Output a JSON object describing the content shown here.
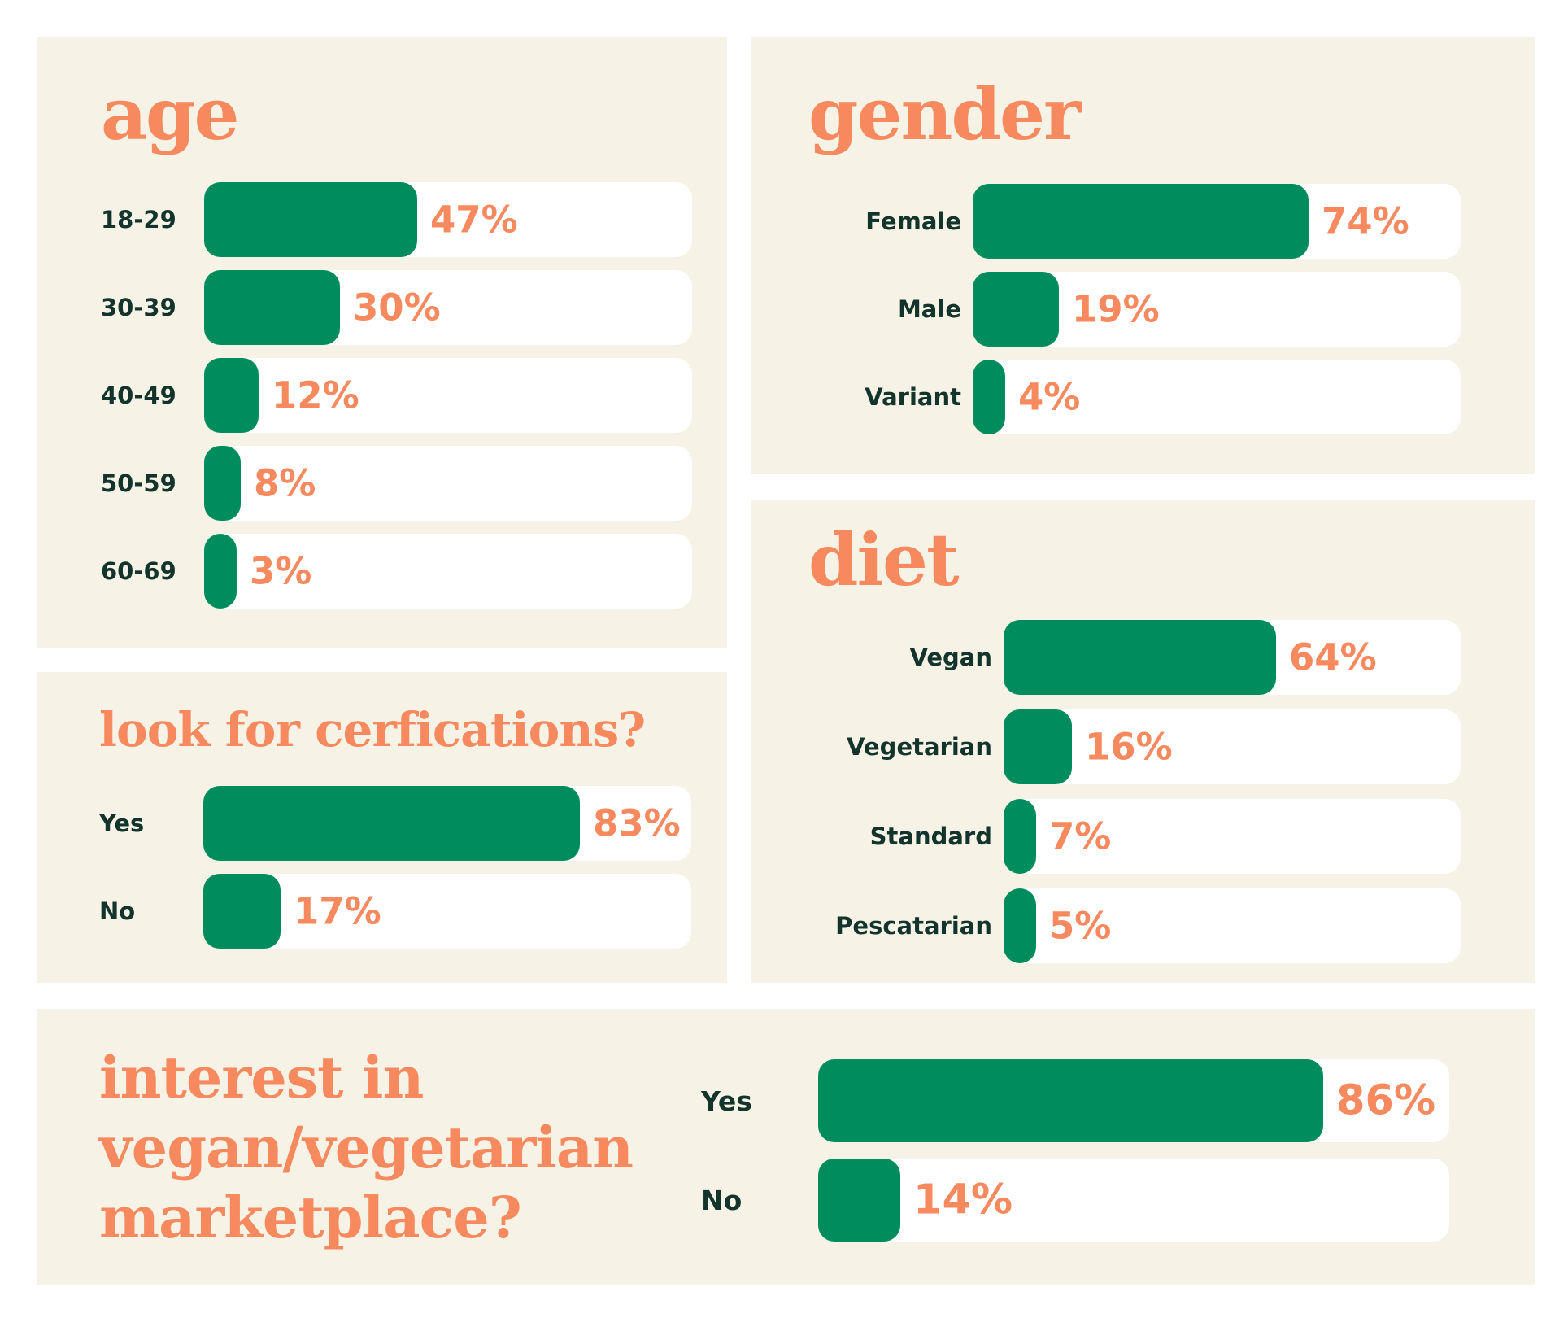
{
  "colors": {
    "panel": "#f6f3e6",
    "bar": "#008c5c",
    "track": "#ffffff",
    "accent": "#f68a5e",
    "label": "#12342c"
  },
  "chart_data": [
    {
      "type": "bar",
      "orientation": "horizontal",
      "title": "age",
      "categories": [
        "18-29",
        "30-39",
        "40-49",
        "50-59",
        "60-69"
      ],
      "values": [
        47,
        30,
        12,
        8,
        3
      ],
      "value_labels": [
        "47%",
        "30%",
        "12%",
        "8%",
        "3%"
      ]
    },
    {
      "type": "bar",
      "orientation": "horizontal",
      "title": "gender",
      "categories": [
        "Female",
        "Male",
        "Variant"
      ],
      "values": [
        74,
        19,
        4
      ],
      "value_labels": [
        "74%",
        "19%",
        "4%"
      ]
    },
    {
      "type": "bar",
      "orientation": "horizontal",
      "title": "look for cerfications?",
      "categories": [
        "Yes",
        "No"
      ],
      "values": [
        83,
        17
      ],
      "value_labels": [
        "83%",
        "17%"
      ]
    },
    {
      "type": "bar",
      "orientation": "horizontal",
      "title": "diet",
      "categories": [
        "Vegan",
        "Vegetarian",
        "Standard",
        "Pescatarian"
      ],
      "values": [
        64,
        16,
        7,
        5
      ],
      "value_labels": [
        "64%",
        "16%",
        "7%",
        "5%"
      ]
    },
    {
      "type": "bar",
      "orientation": "horizontal",
      "title_lines": [
        "interest in",
        "vegan/vegetarian",
        "marketplace?"
      ],
      "categories": [
        "Yes",
        "No"
      ],
      "values": [
        86,
        14
      ],
      "value_labels": [
        "86%",
        "14%"
      ]
    }
  ]
}
